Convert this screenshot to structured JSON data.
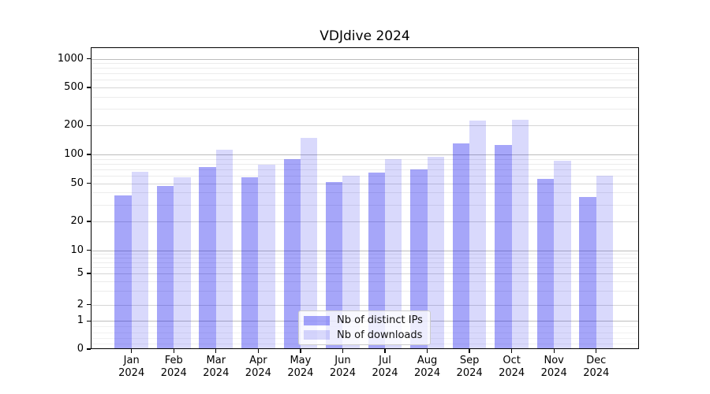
{
  "title": "VDJdive 2024",
  "y_axis": {
    "tick_labels": [
      "1000",
      "500",
      "200",
      "100",
      "50",
      "20",
      "10",
      "5",
      "2",
      "1",
      "0"
    ]
  },
  "x_axis": {
    "months": [
      "Jan",
      "Feb",
      "Mar",
      "Apr",
      "May",
      "Jun",
      "Jul",
      "Aug",
      "Sep",
      "Oct",
      "Nov",
      "Dec"
    ],
    "year": "2024"
  },
  "legend": {
    "items": [
      {
        "label": "Nb of distinct IPs",
        "color": "rgba(0,0,238,0.35)"
      },
      {
        "label": "Nb of downloads",
        "color": "rgba(0,0,238,0.15)"
      }
    ]
  },
  "chart_data": {
    "type": "bar",
    "title": "VDJdive 2024",
    "categories": [
      "Jan 2024",
      "Feb 2024",
      "Mar 2024",
      "Apr 2024",
      "May 2024",
      "Jun 2024",
      "Jul 2024",
      "Aug 2024",
      "Sep 2024",
      "Oct 2024",
      "Nov 2024",
      "Dec 2024"
    ],
    "series": [
      {
        "name": "Nb of distinct IPs",
        "values": [
          37,
          47,
          74,
          58,
          89,
          52,
          65,
          70,
          131,
          125,
          56,
          36
        ],
        "color": "rgba(0,0,238,0.35)"
      },
      {
        "name": "Nb of downloads",
        "values": [
          66,
          58,
          111,
          78,
          150,
          60,
          89,
          95,
          227,
          230,
          86,
          60
        ],
        "color": "rgba(0,0,238,0.15)"
      }
    ],
    "xlabel": "",
    "ylabel": "",
    "yscale": "symlog",
    "yticks": [
      0,
      1,
      2,
      5,
      10,
      20,
      50,
      100,
      200,
      500,
      1000
    ],
    "ylim": [
      0,
      1300
    ],
    "grid": true,
    "legend_position": "lower center"
  }
}
